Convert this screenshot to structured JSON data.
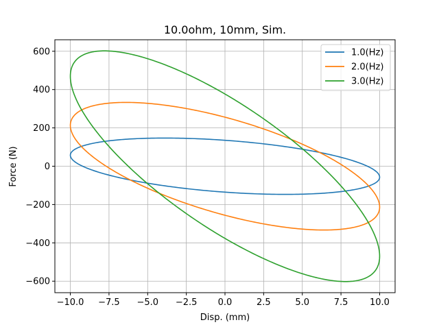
{
  "chart_data": {
    "type": "line",
    "title": "10.0ohm, 10mm, Sim.",
    "xlabel": "Disp. (mm)",
    "ylabel": "Force (N)",
    "xlim": [
      -11.0,
      11.0
    ],
    "ylim": [
      -660,
      660
    ],
    "xticks": [
      -10.0,
      -7.5,
      -5.0,
      -2.5,
      0.0,
      2.5,
      5.0,
      7.5,
      10.0
    ],
    "xtick_labels": [
      "−10.0",
      "−7.5",
      "−5.0",
      "−2.5",
      "0.0",
      "2.5",
      "5.0",
      "7.5",
      "10.0"
    ],
    "yticks": [
      -600,
      -400,
      -200,
      0,
      200,
      400,
      600
    ],
    "ytick_labels": [
      "−600",
      "−400",
      "−200",
      "0",
      "200",
      "400",
      "600"
    ],
    "grid": true,
    "legend_position": "top-right",
    "series": [
      {
        "name": "1.0(Hz)",
        "color": "#1f77b4",
        "amplitude_mm": 10,
        "x_at_peak_force": -3.9,
        "peak_force_N": 147,
        "force_at_zero_disp_N": 137,
        "force_at_max_disp_N": -59
      },
      {
        "name": "2.0(Hz)",
        "color": "#ff7f0e",
        "amplitude_mm": 10,
        "x_at_peak_force": -6.4,
        "peak_force_N": 333,
        "force_at_zero_disp_N": 256,
        "force_at_max_disp_N": -213
      },
      {
        "name": "3.0(Hz)",
        "color": "#2ca02c",
        "amplitude_mm": 10,
        "x_at_peak_force": -7.8,
        "peak_force_N": 602,
        "force_at_zero_disp_N": 377,
        "force_at_max_disp_N": -470
      }
    ]
  }
}
